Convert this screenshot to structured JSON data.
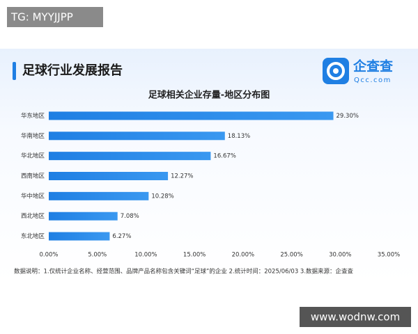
{
  "watermark_top": "TG: MYYJJPP",
  "watermark_bottom": "www.wodnw.com",
  "header": {
    "title": "足球行业发展报告",
    "logo_name": "企查查",
    "logo_url": "Qcc.com"
  },
  "chart_data": {
    "type": "barh",
    "title": "足球相关企业存量-地区分布图",
    "categories": [
      "华东地区",
      "华南地区",
      "华北地区",
      "西南地区",
      "华中地区",
      "西北地区",
      "东北地区"
    ],
    "values": [
      29.3,
      18.13,
      16.67,
      12.27,
      10.28,
      7.08,
      6.27
    ],
    "value_labels": [
      "29.30%",
      "18.13%",
      "16.67%",
      "12.27%",
      "10.28%",
      "7.08%",
      "6.27%"
    ],
    "color": "#2a8be8",
    "xlim": [
      0,
      35
    ],
    "xticks": [
      {
        "value": 0,
        "label": "0.00%"
      },
      {
        "value": 5,
        "label": "5.00%"
      },
      {
        "value": 10,
        "label": "10.00%"
      },
      {
        "value": 15,
        "label": "15.00%"
      },
      {
        "value": 20,
        "label": "20.00%"
      },
      {
        "value": 25,
        "label": "25.00%"
      },
      {
        "value": 30,
        "label": "30.00%"
      },
      {
        "value": 35,
        "label": "35.00%"
      }
    ],
    "grid": false,
    "note": "数据说明：1.仅统计企业名称、经营范围、品牌产品名称包含关键词“足球”的企业  2.统计时间：2025/06/03  3.数据来源：企查查"
  }
}
